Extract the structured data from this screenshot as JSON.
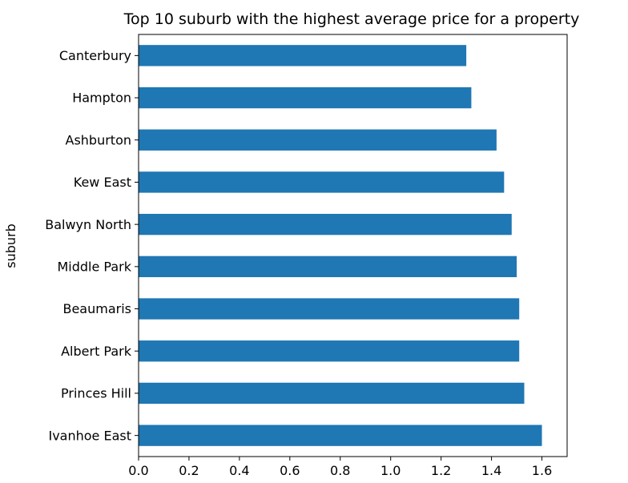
{
  "chart_data": {
    "type": "bar",
    "orientation": "horizontal",
    "title": "Top 10 suburb with the highest average price for a property",
    "xlabel": "",
    "ylabel": "suburb",
    "categories": [
      "Ivanhoe East",
      "Princes Hill",
      "Albert Park",
      "Beaumaris",
      "Middle Park",
      "Balwyn North",
      "Kew East",
      "Ashburton",
      "Hampton",
      "Canterbury"
    ],
    "values": [
      1.6,
      1.53,
      1.51,
      1.51,
      1.5,
      1.48,
      1.45,
      1.42,
      1.32,
      1.3
    ],
    "xlim": [
      0.0,
      1.7
    ],
    "xticks": [
      0.0,
      0.2,
      0.4,
      0.6,
      0.8,
      1.0,
      1.2,
      1.4,
      1.6
    ],
    "xtick_labels": [
      "0.0",
      "0.2",
      "0.4",
      "0.6",
      "0.8",
      "1.0",
      "1.2",
      "1.4",
      "1.6"
    ],
    "bar_color": "#1f77b4",
    "grid": false,
    "legend": "none"
  }
}
